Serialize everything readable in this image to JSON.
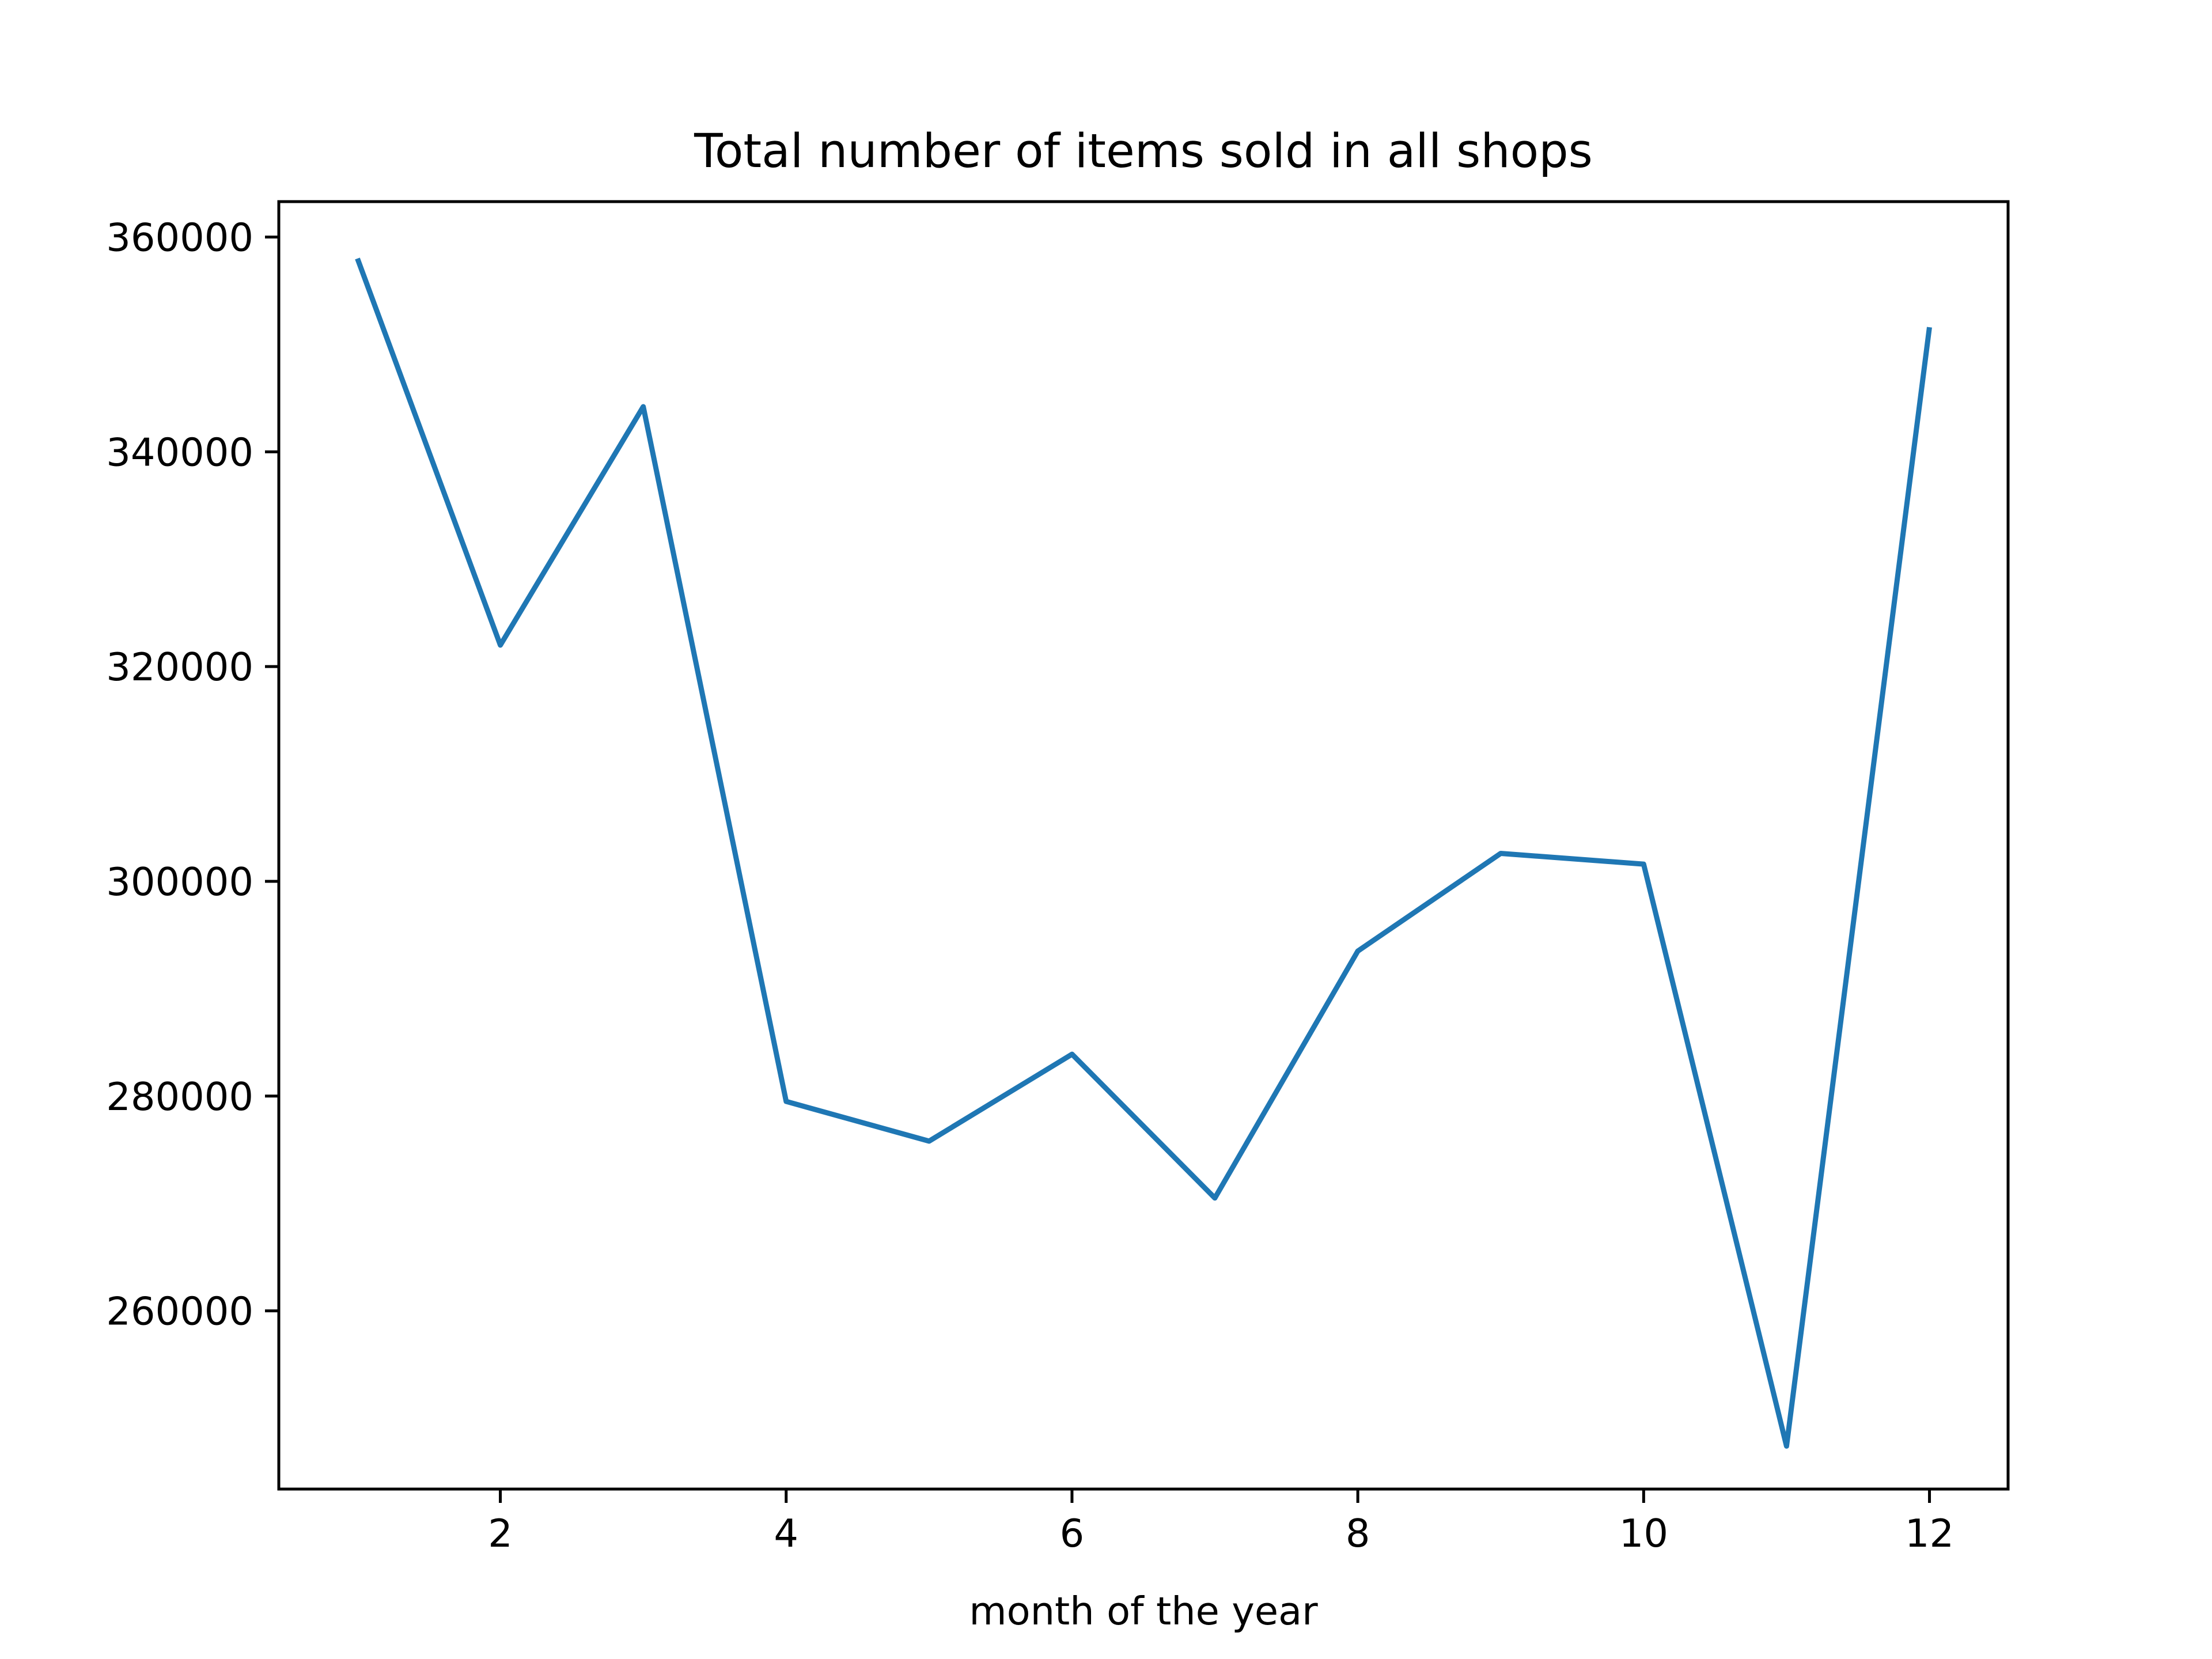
{
  "chart_data": {
    "type": "line",
    "title": "Total number of items sold in all shops",
    "xlabel": "month of the year",
    "ylabel": "",
    "x": [
      1,
      2,
      3,
      4,
      5,
      6,
      7,
      8,
      9,
      10,
      11,
      12
    ],
    "series": [
      {
        "values": [
          358000,
          322000,
          344200,
          279500,
          275800,
          283900,
          270500,
          293500,
          302600,
          301600,
          247400,
          351600
        ],
        "color": "#1f77b4"
      }
    ],
    "xlim": [
      0.45,
      12.55
    ],
    "ylim": [
      243400,
      363300
    ],
    "xticks": [
      2,
      4,
      6,
      8,
      10,
      12
    ],
    "xtick_labels": [
      "2",
      "4",
      "6",
      "8",
      "10",
      "12"
    ],
    "yticks": [
      260000,
      280000,
      300000,
      320000,
      340000,
      360000
    ],
    "ytick_labels": [
      "260000",
      "280000",
      "300000",
      "320000",
      "340000",
      "360000"
    ],
    "grid": false,
    "legend": "none"
  }
}
